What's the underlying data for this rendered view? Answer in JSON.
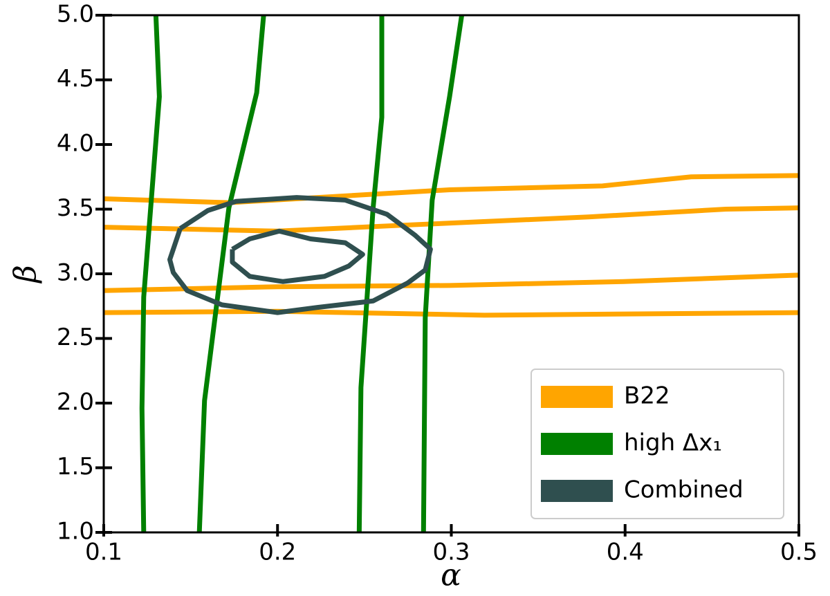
{
  "chart_data": {
    "type": "contour",
    "xlabel": "α",
    "ylabel": "β",
    "xlim": [
      0.1,
      0.5
    ],
    "ylim": [
      1.0,
      5.0
    ],
    "xticks": [
      0.1,
      0.2,
      0.3,
      0.4,
      0.5
    ],
    "yticks": [
      {
        "value": 1,
        "label": "1.0"
      },
      1.5,
      {
        "value": 2,
        "label": "2.0"
      },
      2.5,
      {
        "value": 3,
        "label": "3.0"
      },
      3.5,
      {
        "value": 4,
        "label": "4.0"
      },
      4.5,
      {
        "value": 5,
        "label": "5.0"
      }
    ],
    "legend": "lower right",
    "series": [
      {
        "name": "B22",
        "color": "#ffa500",
        "lines": [
          {
            "x": [
              0.1,
              0.172,
              0.299,
              0.387,
              0.438,
              0.5
            ],
            "y": [
              3.58,
              3.55,
              3.65,
              3.68,
              3.75,
              3.76
            ]
          },
          {
            "x": [
              0.1,
              0.2,
              0.279,
              0.379,
              0.458,
              0.5
            ],
            "y": [
              3.36,
              3.33,
              3.38,
              3.44,
              3.5,
              3.51
            ]
          },
          {
            "x": [
              0.1,
              0.2,
              0.299,
              0.399,
              0.5
            ],
            "y": [
              2.87,
              2.9,
              2.91,
              2.94,
              2.99
            ]
          },
          {
            "x": [
              0.1,
              0.2,
              0.319,
              0.5
            ],
            "y": [
              2.7,
              2.71,
              2.68,
              2.7
            ]
          }
        ]
      },
      {
        "name": "high Δx₁",
        "color": "#008000",
        "lines": [
          {
            "x": [
              0.13,
              0.132,
              0.123,
              0.122,
              0.123
            ],
            "y": [
              5,
              4.37,
              2.82,
              1.96,
              1
            ]
          },
          {
            "x": [
              0.192,
              0.188,
              0.172,
              0.158,
              0.155
            ],
            "y": [
              5,
              4.4,
              3.51,
              2.02,
              1
            ]
          },
          {
            "x": [
              0.26,
              0.26,
              0.255,
              0.248,
              0.247
            ],
            "y": [
              5,
              4.21,
              3.51,
              2.12,
              1
            ]
          },
          {
            "x": [
              0.306,
              0.299,
              0.289,
              0.285,
              0.284
            ],
            "y": [
              5,
              4.37,
              3.57,
              2.66,
              1
            ]
          }
        ]
      },
      {
        "name": "Combined",
        "color": "#2f4f4f",
        "lines": [
          {
            "x": [
              0.144,
              0.16,
              0.176,
              0.211,
              0.239,
              0.263,
              0.279,
              0.288,
              0.285,
              0.275,
              0.255,
              0.223,
              0.2,
              0.168,
              0.148,
              0.14,
              0.138,
              0.144
            ],
            "y": [
              3.35,
              3.49,
              3.56,
              3.59,
              3.57,
              3.46,
              3.3,
              3.19,
              3.03,
              2.93,
              2.79,
              2.74,
              2.7,
              2.76,
              2.87,
              3.01,
              3.11,
              3.35
            ]
          },
          {
            "x": [
              0.174,
              0.184,
              0.201,
              0.219,
              0.239,
              0.249,
              0.241,
              0.227,
              0.203,
              0.184,
              0.174,
              0.174
            ],
            "y": [
              3.19,
              3.27,
              3.33,
              3.27,
              3.24,
              3.15,
              3.06,
              2.98,
              2.94,
              2.98,
              3.09,
              3.19
            ]
          }
        ]
      }
    ]
  }
}
